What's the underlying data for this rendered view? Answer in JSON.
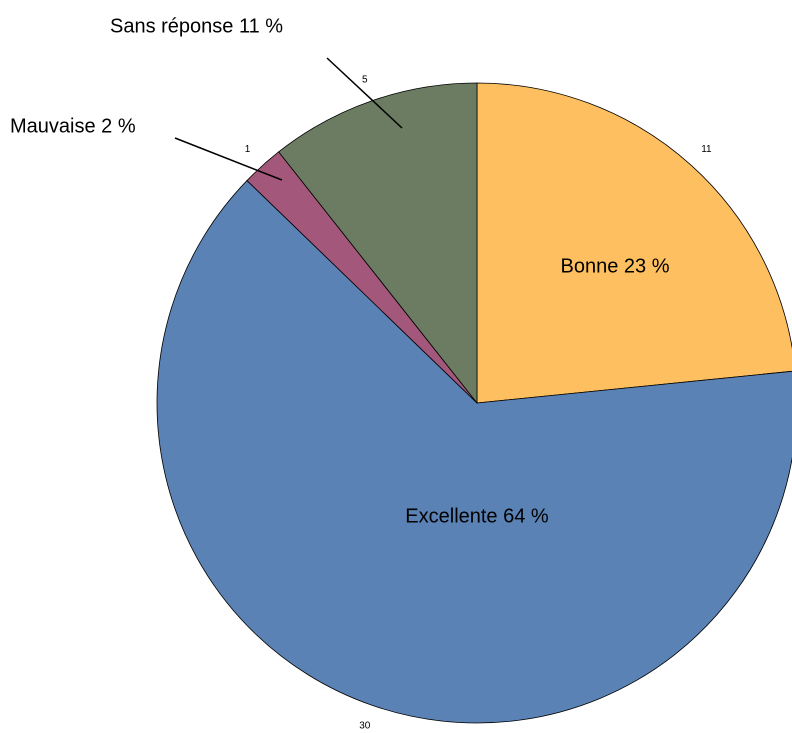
{
  "chart_data": {
    "type": "pie",
    "labels": [
      "Bonne 23 %",
      "Excellente 64 %",
      "Mauvaise 2 %",
      "Sans réponse 11 %"
    ],
    "values": [
      11,
      30,
      1,
      5
    ],
    "colors": [
      "#fdbf5f",
      "#5b82b5",
      "#a3577a",
      "#6b7c62"
    ]
  }
}
